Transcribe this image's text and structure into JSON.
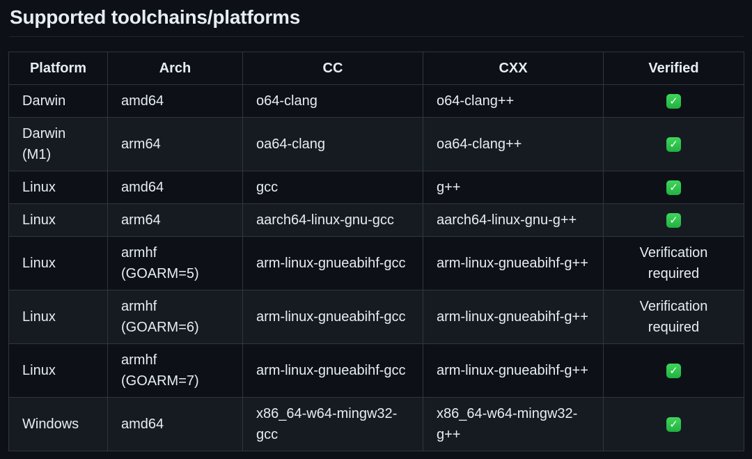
{
  "page": {
    "title": "Supported toolchains/platforms"
  },
  "colors": {
    "background": "#0d1117",
    "row_alt_background": "#161b22",
    "table_border": "#30363d",
    "title_underline": "#21262d",
    "text": "#e6edf3",
    "check_green": "#2dbe46"
  },
  "table": {
    "columns": [
      "Platform",
      "Arch",
      "CC",
      "CXX",
      "Verified"
    ],
    "check_token": "check",
    "check_glyph": "✓",
    "check_icon_name": "verified-check-icon",
    "rows": [
      {
        "platform": "Darwin",
        "arch": "amd64",
        "cc": "o64-clang",
        "cxx": "o64-clang++",
        "verified": "check"
      },
      {
        "platform": "Darwin (M1)",
        "arch": "arm64",
        "cc": "oa64-clang",
        "cxx": "oa64-clang++",
        "verified": "check"
      },
      {
        "platform": "Linux",
        "arch": "amd64",
        "cc": "gcc",
        "cxx": "g++",
        "verified": "check"
      },
      {
        "platform": "Linux",
        "arch": "arm64",
        "cc": "aarch64-linux-gnu-gcc",
        "cxx": "aarch64-linux-gnu-g++",
        "verified": "check"
      },
      {
        "platform": "Linux",
        "arch": "armhf (GOARM=5)",
        "cc": "arm-linux-gnueabihf-gcc",
        "cxx": "arm-linux-gnueabihf-g++",
        "verified": "Verification required"
      },
      {
        "platform": "Linux",
        "arch": "armhf (GOARM=6)",
        "cc": "arm-linux-gnueabihf-gcc",
        "cxx": "arm-linux-gnueabihf-g++",
        "verified": "Verification required"
      },
      {
        "platform": "Linux",
        "arch": "armhf (GOARM=7)",
        "cc": "arm-linux-gnueabihf-gcc",
        "cxx": "arm-linux-gnueabihf-g++",
        "verified": "check"
      },
      {
        "platform": "Windows",
        "arch": "amd64",
        "cc": "x86_64-w64-mingw32-gcc",
        "cxx": "x86_64-w64-mingw32-g++",
        "verified": "check"
      }
    ]
  }
}
